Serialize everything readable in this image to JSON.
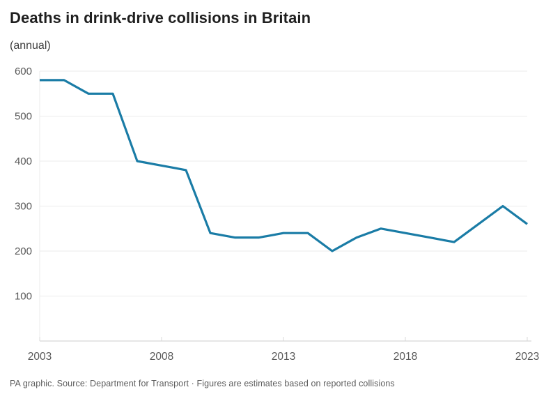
{
  "header": {
    "title": "Deaths in drink-drive collisions in Britain",
    "subtitle": "(annual)"
  },
  "footer": {
    "text": "PA graphic. Source: Department for Transport · Figures are estimates based on reported collisions"
  },
  "chart_data": {
    "type": "line",
    "title": "Deaths in drink-drive collisions in Britain",
    "subtitle": "(annual)",
    "x": [
      2003,
      2004,
      2005,
      2006,
      2007,
      2008,
      2009,
      2010,
      2011,
      2012,
      2013,
      2014,
      2015,
      2016,
      2017,
      2018,
      2019,
      2020,
      2021,
      2022,
      2023
    ],
    "series": [
      {
        "name": "Deaths in drink-drive collisions",
        "values": [
          580,
          580,
          550,
          550,
          400,
          390,
          380,
          240,
          230,
          230,
          240,
          240,
          200,
          230,
          250,
          240,
          230,
          220,
          260,
          300,
          260
        ]
      }
    ],
    "xlabel": "",
    "ylabel": "",
    "xlim": [
      2003,
      2023
    ],
    "ylim": [
      0,
      600
    ],
    "xticks": [
      2003,
      2008,
      2013,
      2018,
      2023
    ],
    "yticks": [
      100,
      200,
      300,
      400,
      500,
      600
    ],
    "grid": true,
    "legend_position": "none",
    "line_color": "#1a7ca6",
    "grid_color": "#ebebeb",
    "axis_color": "#d8d8d8",
    "tick_label_color": "#595959"
  }
}
